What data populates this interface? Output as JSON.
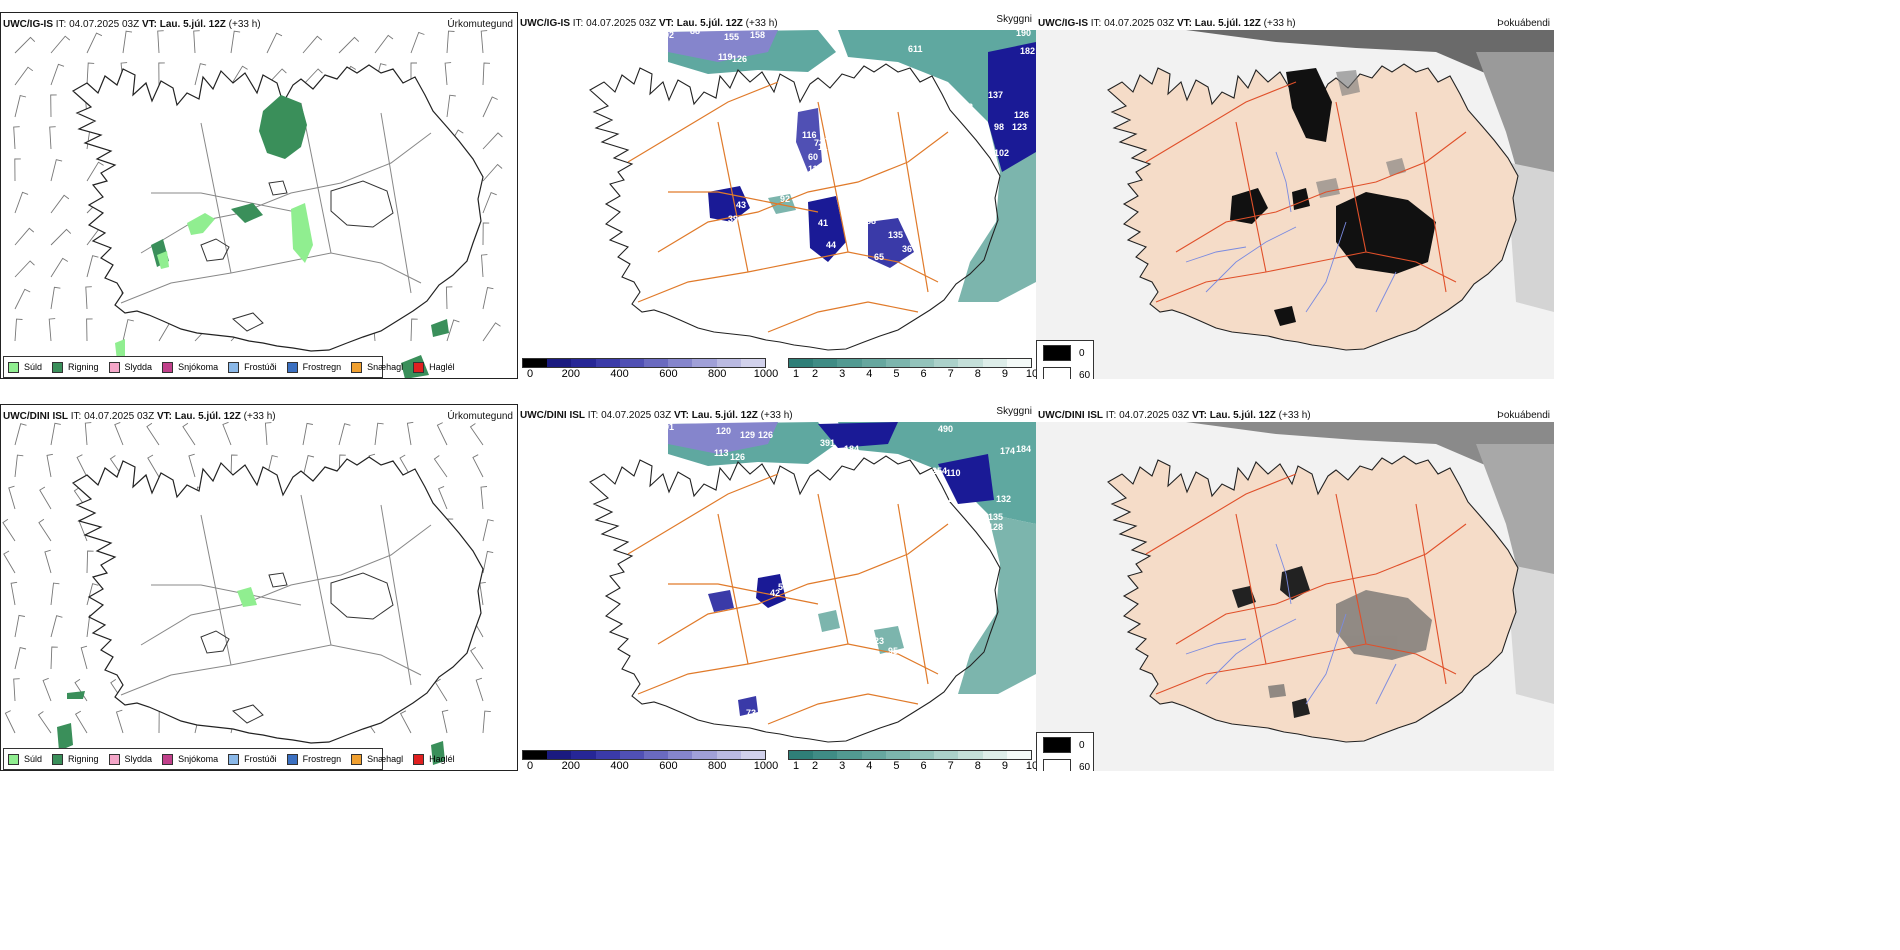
{
  "rows": [
    {
      "model": "UWC/IG-IS",
      "it_label": "IT:",
      "it_value": "04.07.2025 03Z",
      "vt_label": "VT:",
      "vt_value": "Lau. 5.júl. 12Z",
      "lead": "(+33 h)",
      "titles": [
        "Úrkomutegund",
        "Skyggni",
        "Þokuábendi"
      ],
      "visibility_labels": [
        "92",
        "88",
        "155",
        "158",
        "119",
        "126",
        "28",
        "611",
        "190",
        "182",
        "137",
        "102",
        "126",
        "123",
        "98",
        "102",
        "116",
        "73",
        "135",
        "60",
        "110",
        "11",
        "92",
        "39",
        "43",
        "41",
        "198",
        "88",
        "44",
        "135",
        "65",
        "36",
        "61"
      ]
    },
    {
      "model": "UWC/DINI ISL",
      "it_label": "IT:",
      "it_value": "04.07.2025 03Z",
      "vt_label": "VT:",
      "vt_value": "Lau. 5.júl. 12Z",
      "lead": "(+33 h)",
      "titles": [
        "Úrkomutegund",
        "Skyggni",
        "Þokuábendi"
      ],
      "visibility_labels": [
        "91",
        "120",
        "129",
        "126",
        "113",
        "126",
        "391",
        "184",
        "490",
        "174",
        "184",
        "254",
        "110",
        "212",
        "132",
        "135",
        "128",
        "57",
        "42",
        "23",
        "95",
        "73"
      ]
    }
  ],
  "precip_legend": [
    {
      "label": "Súld",
      "color": "#90ee90"
    },
    {
      "label": "Rigning",
      "color": "#3a8f5a"
    },
    {
      "label": "Slydda",
      "color": "#f4a6c8"
    },
    {
      "label": "Snjókoma",
      "color": "#c0408a"
    },
    {
      "label": "Frostúði",
      "color": "#8ab8e8"
    },
    {
      "label": "Frostregn",
      "color": "#3a6fc0"
    },
    {
      "label": "Snæhagl",
      "color": "#f0a030"
    },
    {
      "label": "Haglél",
      "color": "#e02020"
    }
  ],
  "ceiling_bar": {
    "unit": "m",
    "ticks": [
      "0",
      "200",
      "400",
      "600",
      "800",
      "1000"
    ],
    "colors": [
      "#000000",
      "#1a1a80",
      "#262696",
      "#3a3aa8",
      "#5050b4",
      "#6a6ac0",
      "#8585cc",
      "#a0a0d8",
      "#babae2",
      "#d2d2ec"
    ]
  },
  "visibility_bar": {
    "unit": "km",
    "ticks": [
      "1",
      "2",
      "3",
      "4",
      "5",
      "6",
      "7",
      "8",
      "9",
      "10"
    ],
    "colors": [
      "#2f7f78",
      "#3f8c85",
      "#529a92",
      "#66a79f",
      "#7cb5ad",
      "#93c3bb",
      "#abd1ca",
      "#c4dfd9",
      "#ddede9",
      "#f4faf8"
    ]
  },
  "fog_legend": [
    {
      "label": "0",
      "color": "#000000"
    },
    {
      "label": "60",
      "color": "#ffffff"
    }
  ]
}
